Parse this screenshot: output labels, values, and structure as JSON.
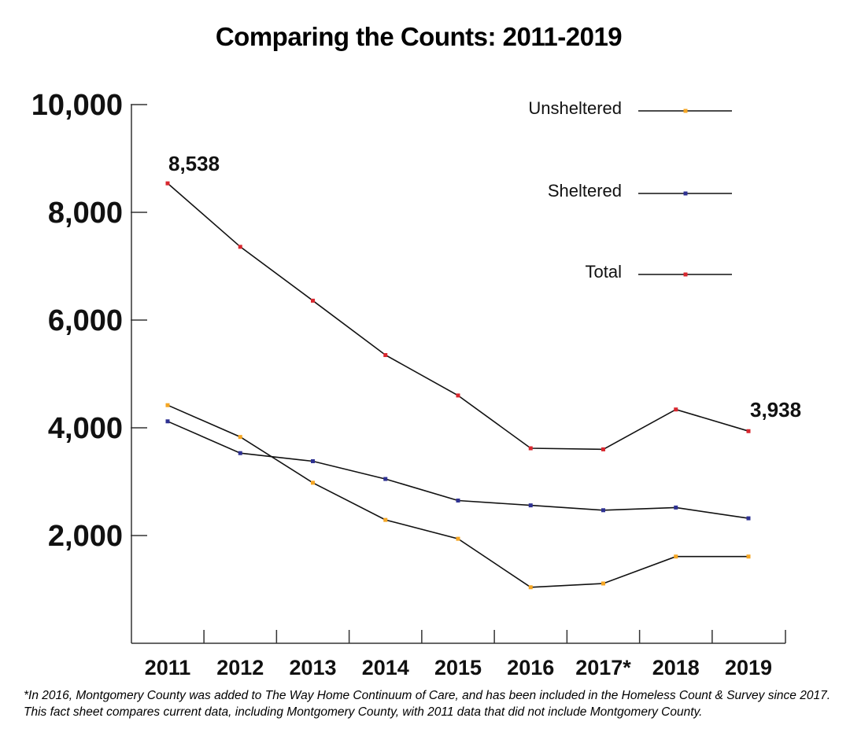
{
  "title": "Comparing the Counts: 2011-2019",
  "footnote": "*In 2016, Montgomery County was added to The Way Home Continuum of Care, and has been included in the Homeless Count & Survey since 2017. This fact sheet compares current data, including Montgomery County, with 2011 data that did not include Montgomery County.",
  "chart_data": {
    "type": "line",
    "title": "Comparing the Counts: 2011-2019",
    "xlabel": "",
    "ylabel": "",
    "categories": [
      "2011",
      "2012",
      "2013",
      "2014",
      "2015",
      "2016",
      "2017*",
      "2018",
      "2019"
    ],
    "ylim": [
      0,
      10000
    ],
    "yticks": [
      2000,
      4000,
      6000,
      8000,
      10000
    ],
    "ytick_labels": [
      "2,000",
      "4,000",
      "6,000",
      "8,000",
      "10,000"
    ],
    "grid": false,
    "legend_position": "top-right",
    "series": [
      {
        "name": "Unsheltered",
        "color": "#f5a623",
        "values": [
          4420,
          3830,
          2980,
          2290,
          1940,
          1040,
          1110,
          1610,
          1610
        ]
      },
      {
        "name": "Sheltered",
        "color": "#2e3192",
        "values": [
          4120,
          3530,
          3380,
          3050,
          2650,
          2560,
          2470,
          2520,
          2320
        ]
      },
      {
        "name": "Total",
        "color": "#d9272e",
        "values": [
          8538,
          7360,
          6360,
          5350,
          4600,
          3620,
          3600,
          4340,
          3938
        ]
      }
    ],
    "annotations": [
      {
        "series": "Total",
        "category": "2011",
        "text": "8,538"
      },
      {
        "series": "Total",
        "category": "2019",
        "text": "3,938"
      }
    ]
  }
}
